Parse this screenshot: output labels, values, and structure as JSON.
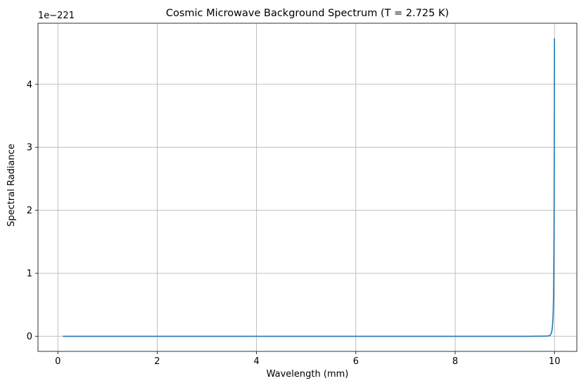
{
  "chart_data": {
    "type": "line",
    "title": "Cosmic Microwave Background Spectrum (T = 2.725 K)",
    "xlabel": "Wavelength (mm)",
    "ylabel": "Spectral Radiance",
    "y_offset_label": "1e−221",
    "xlim": [
      -0.4,
      10.45
    ],
    "ylim": [
      -0.24,
      4.97
    ],
    "x_ticks": [
      0,
      2,
      4,
      6,
      8,
      10
    ],
    "y_ticks": [
      0,
      1,
      2,
      3,
      4
    ],
    "grid": true,
    "series": [
      {
        "color": "#1f77b4",
        "x": [
          0.1,
          2,
          4,
          6,
          8,
          9.5,
          9.85,
          9.9,
          9.92,
          9.94,
          9.95,
          9.96,
          9.97,
          9.975,
          9.98,
          9.985,
          9.99,
          9.993,
          9.996,
          10.0
        ],
        "y": [
          0,
          0,
          0,
          0,
          0,
          0,
          0.002,
          0.01,
          0.025,
          0.06,
          0.1,
          0.17,
          0.3,
          0.42,
          0.62,
          0.95,
          1.6,
          2.3,
          3.2,
          4.73
        ]
      }
    ]
  }
}
